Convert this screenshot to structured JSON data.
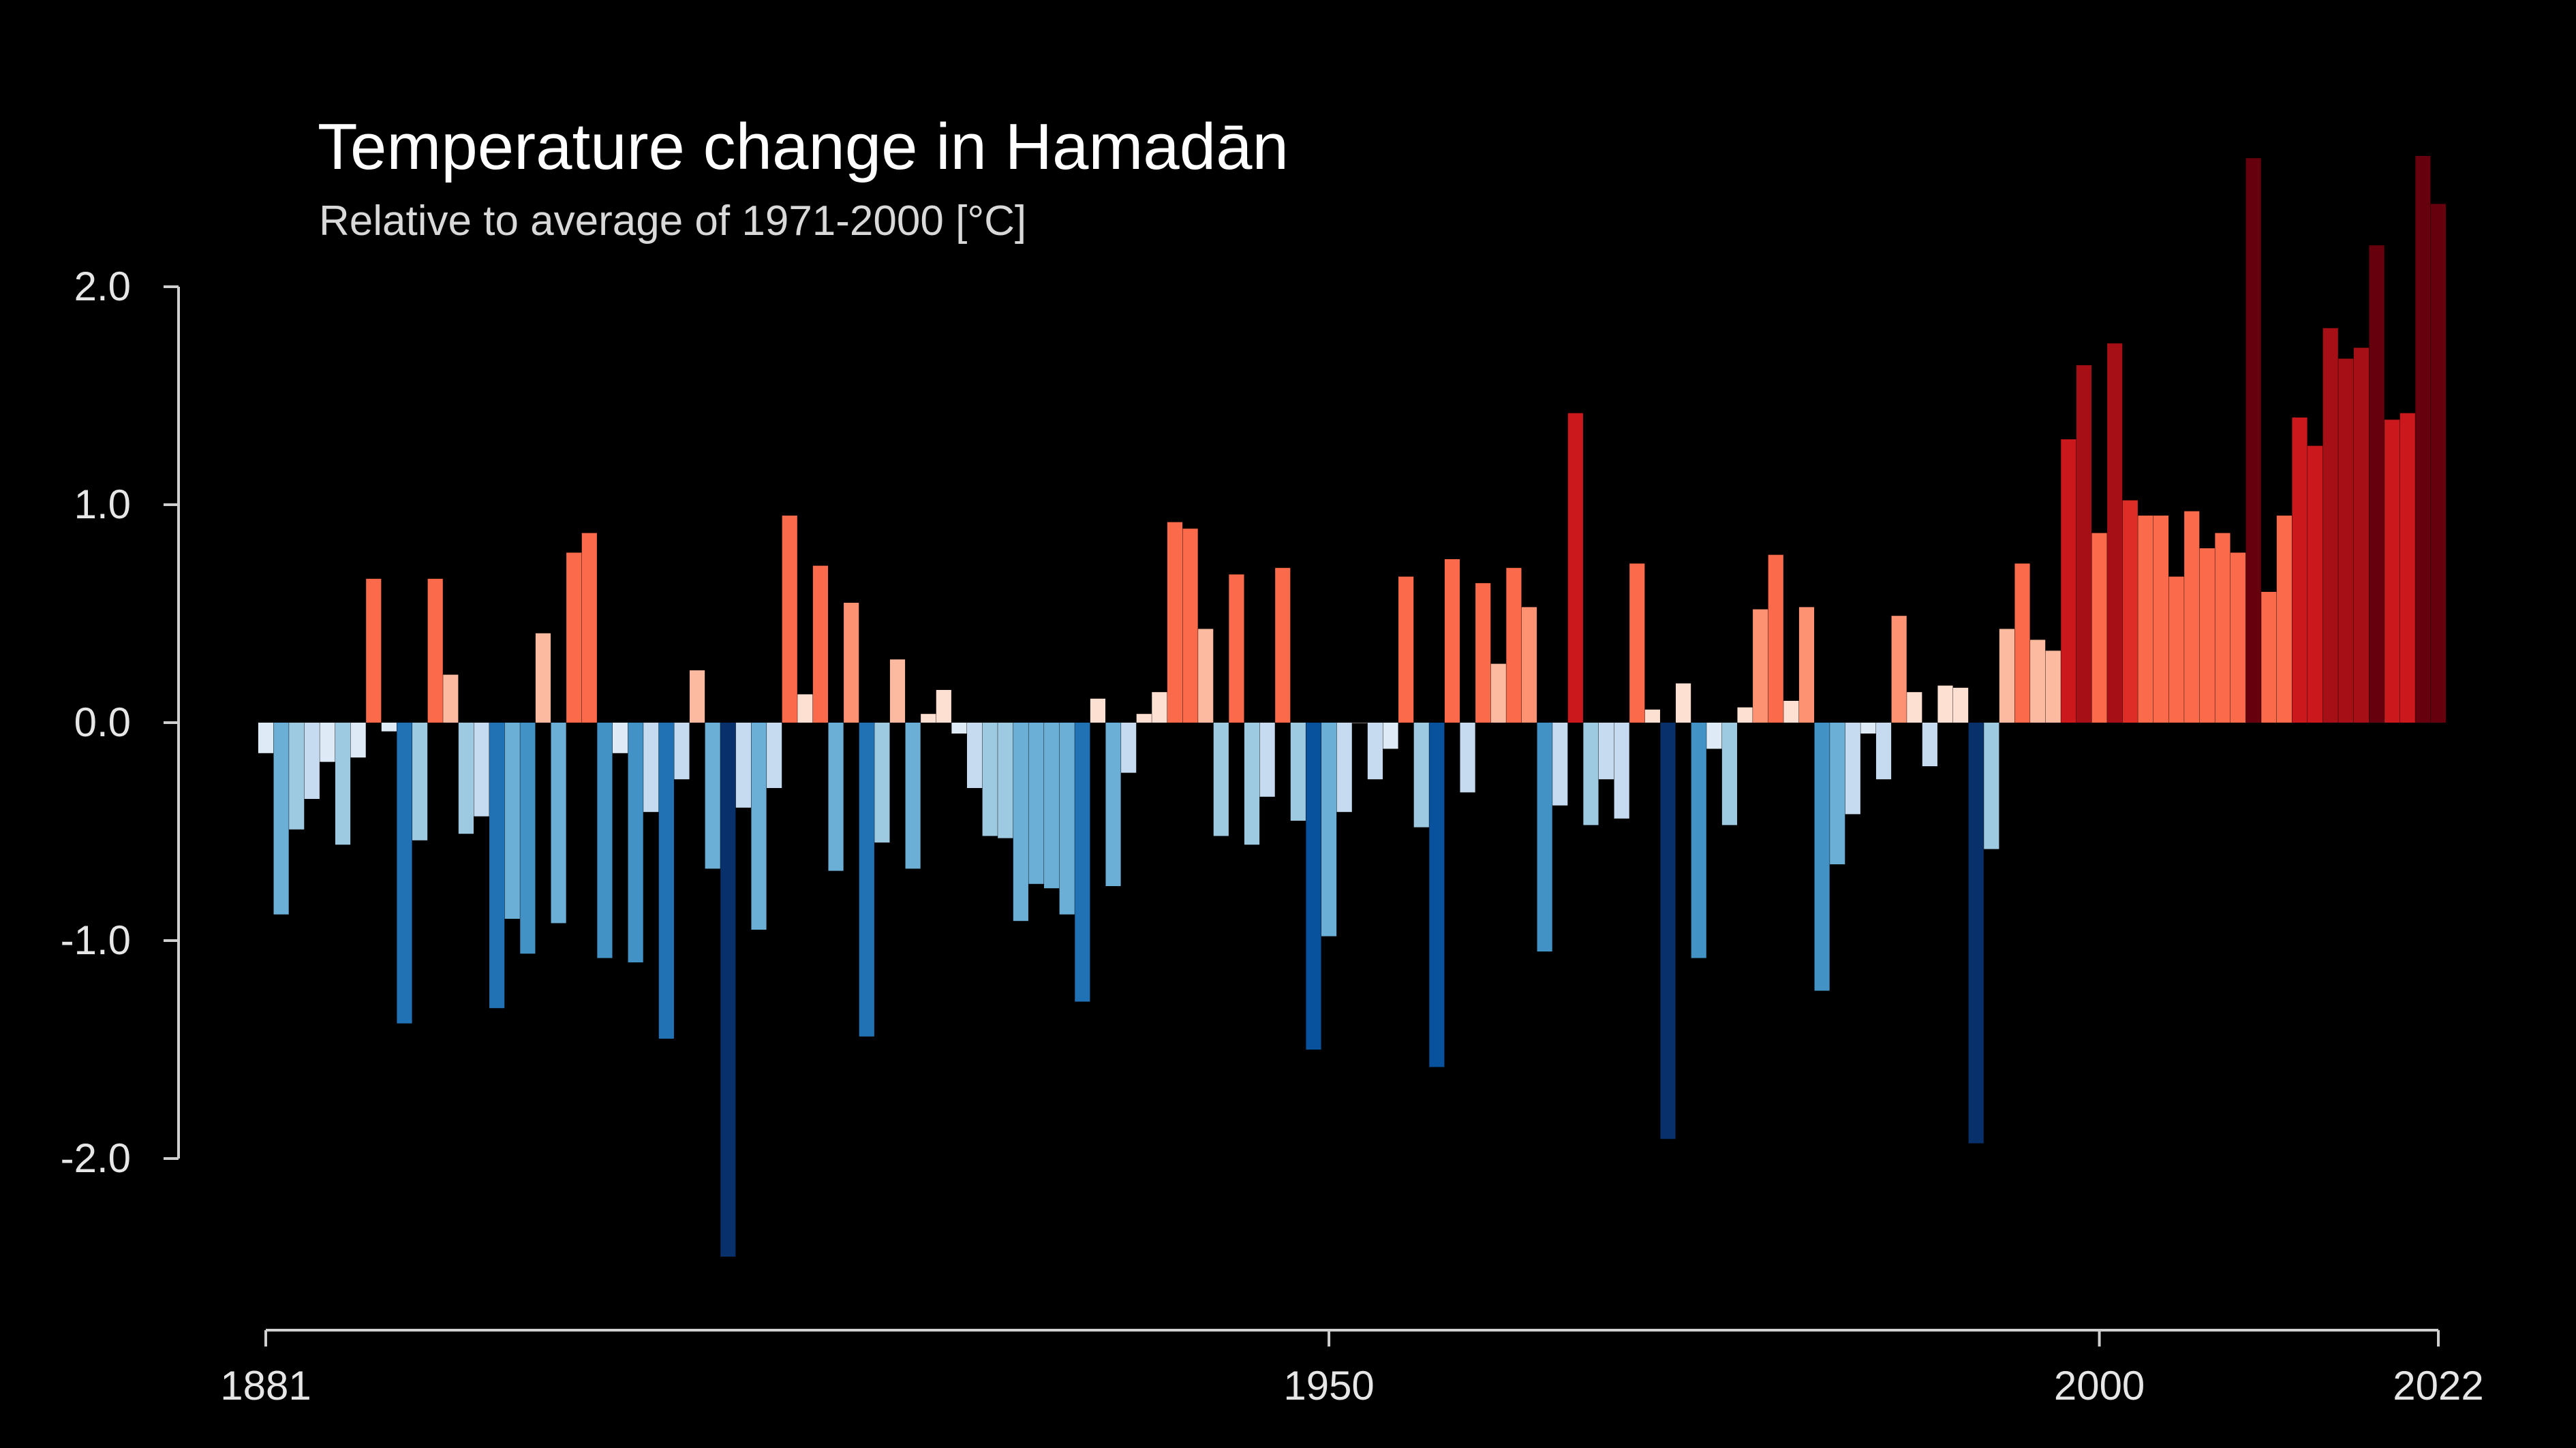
{
  "chart_data": {
    "type": "bar",
    "title": "Temperature change in Hamadān",
    "subtitle": "Relative to average of 1971-2000  [°C]",
    "xlabel": "",
    "ylabel": "",
    "x_start": 1881,
    "x_end": 2022,
    "x_ticks": [
      "1881",
      "1950",
      "2000",
      "2022"
    ],
    "y_ticks": [
      "2.0",
      "1.0",
      "0.0",
      "-1.0",
      "-2.0"
    ],
    "ylim": [
      -2.6,
      2.6
    ],
    "grid": false,
    "legend": "none",
    "colors": {
      "warm": [
        "#fee0d2",
        "#fcbba1",
        "#fc9272",
        "#fb6a4a",
        "#de2d26",
        "#cb181d",
        "#a50f15",
        "#67000d"
      ],
      "cool": [
        "#deebf7",
        "#c6dbef",
        "#9ecae1",
        "#6baed6",
        "#4292c6",
        "#2171b5",
        "#08519c",
        "#08306b"
      ]
    },
    "values": [
      -0.14,
      -0.88,
      -0.49,
      -0.35,
      -0.18,
      -0.56,
      -0.16,
      0.66,
      -0.04,
      -1.38,
      -0.54,
      0.66,
      0.22,
      -0.51,
      -0.43,
      -1.31,
      -0.9,
      -1.06,
      0.41,
      -0.92,
      0.78,
      0.87,
      -1.08,
      -0.14,
      -1.1,
      -0.41,
      -1.45,
      -0.26,
      0.24,
      -0.67,
      -2.45,
      -0.39,
      -0.95,
      -0.3,
      0.95,
      0.13,
      0.72,
      -0.68,
      0.55,
      -1.44,
      -0.55,
      0.29,
      -0.67,
      0.04,
      0.15,
      -0.05,
      -0.3,
      -0.52,
      -0.53,
      -0.91,
      -0.74,
      -0.76,
      -0.88,
      -1.28,
      0.11,
      -0.75,
      -0.23,
      0.04,
      0.14,
      0.92,
      0.89,
      0.43,
      -0.52,
      0.68,
      -0.56,
      -0.34,
      0.71,
      -0.45,
      -1.5,
      -0.98,
      -0.41,
      0.0,
      -0.26,
      -0.12,
      0.67,
      -0.48,
      -1.58,
      0.75,
      -0.32,
      0.64,
      0.27,
      0.71,
      0.53,
      -1.05,
      -0.38,
      1.42,
      -0.47,
      -0.26,
      -0.44,
      0.73,
      0.06,
      -1.91,
      0.18,
      -1.08,
      -0.12,
      -0.47,
      0.07,
      0.52,
      0.77,
      0.1,
      0.53,
      -1.23,
      -0.65,
      -0.42,
      -0.05,
      -0.26,
      0.49,
      0.14,
      -0.2,
      0.17,
      0.16,
      -1.93,
      -0.58,
      0.43,
      0.73,
      0.38,
      0.33,
      1.3,
      1.64,
      0.87,
      1.74,
      1.02,
      0.95,
      0.95,
      0.67,
      0.97,
      0.8,
      0.87,
      0.78,
      2.59,
      0.6,
      0.95,
      1.4,
      1.27,
      1.81,
      1.67,
      1.72,
      2.19,
      1.39,
      1.42,
      2.6,
      2.38
    ]
  }
}
